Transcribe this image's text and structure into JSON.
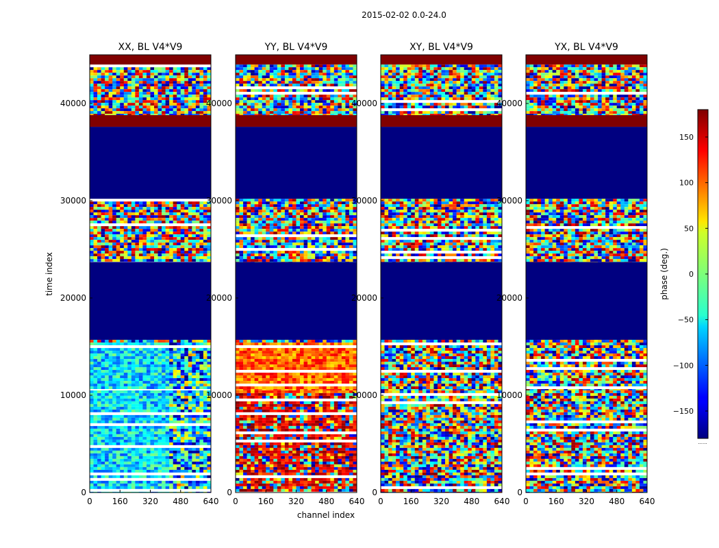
{
  "chart_data": {
    "type": "heatmap",
    "suptitle": "2015-02-02 0.0-24.0",
    "xlabel": "channel index",
    "ylabel": "time index",
    "xlim": [
      0,
      640
    ],
    "ylim": [
      0,
      45000
    ],
    "xticks": [
      "0",
      "160",
      "320",
      "480",
      "640"
    ],
    "yticks": [
      "0",
      "10000",
      "20000",
      "30000",
      "40000"
    ],
    "colorbar": {
      "label": "phase (deg.)",
      "range": [
        -180,
        180
      ],
      "ticks": [
        "150",
        "100",
        "50",
        "0",
        "−50",
        "−100",
        "−150"
      ],
      "footnote": "......",
      "colormap": "jet"
    },
    "panels": [
      {
        "title": "XX, BL V4*V9",
        "pol": "XX"
      },
      {
        "title": "YY, BL V4*V9",
        "pol": "YY"
      },
      {
        "title": "XY, BL V4*V9",
        "pol": "XY"
      },
      {
        "title": "YX, BL V4*V9",
        "pol": "YX"
      }
    ],
    "bands": [
      {
        "t0": 0,
        "t1": 10500,
        "phase": "noisy"
      },
      {
        "t0": 10500,
        "t1": 15700,
        "phase": "noisy"
      },
      {
        "t0": 15700,
        "t1": 23700,
        "phase": "flagged",
        "value": -180
      },
      {
        "t0": 23700,
        "t1": 30200,
        "phase": "noisy"
      },
      {
        "t0": 30200,
        "t1": 37600,
        "phase": "flagged",
        "value": -180
      },
      {
        "t0": 37600,
        "t1": 38800,
        "phase": "flagged",
        "value": 180
      },
      {
        "t0": 38800,
        "t1": 44000,
        "phase": "noisy"
      },
      {
        "t0": 44000,
        "t1": 45000,
        "phase": "flagged",
        "value": 180
      }
    ]
  }
}
